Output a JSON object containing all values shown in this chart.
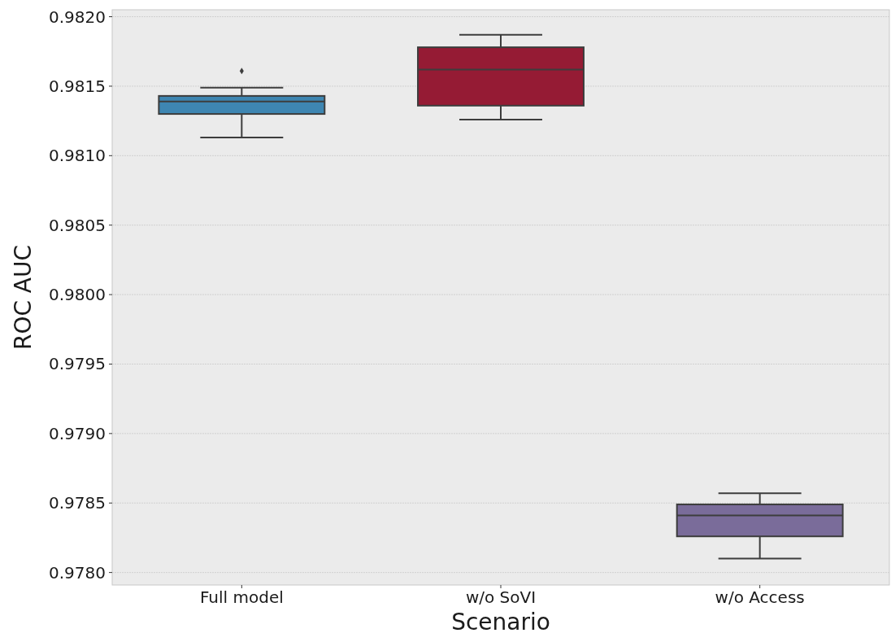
{
  "chart_data": {
    "type": "box",
    "xlabel": "Scenario",
    "ylabel": "ROC AUC",
    "categories": [
      "Full model",
      "w/o SoVI",
      "w/o Access"
    ],
    "colors": [
      "#3e86b2",
      "#951b34",
      "#7a6c9a"
    ],
    "boxes": [
      {
        "low": 0.98113,
        "q1": 0.9813,
        "median": 0.98139,
        "q3": 0.98143,
        "high": 0.98149,
        "outliers": [
          0.98161
        ]
      },
      {
        "low": 0.98126,
        "q1": 0.98136,
        "median": 0.98162,
        "q3": 0.98178,
        "high": 0.98187
      },
      {
        "low": 0.9781,
        "q1": 0.97826,
        "median": 0.97841,
        "q3": 0.97849,
        "high": 0.97857
      }
    ],
    "ylim": [
      0.97791,
      0.98205
    ],
    "yticks": [
      {
        "value": 0.978,
        "label": "0.9780"
      },
      0.9785,
      {
        "value": 0.979,
        "label": "0.9790"
      },
      0.9795,
      {
        "value": 0.98,
        "label": "0.9800"
      },
      0.9805,
      {
        "value": 0.981,
        "label": "0.9810"
      },
      0.9815,
      {
        "value": 0.982,
        "label": "0.9820"
      }
    ],
    "grid": "y"
  }
}
